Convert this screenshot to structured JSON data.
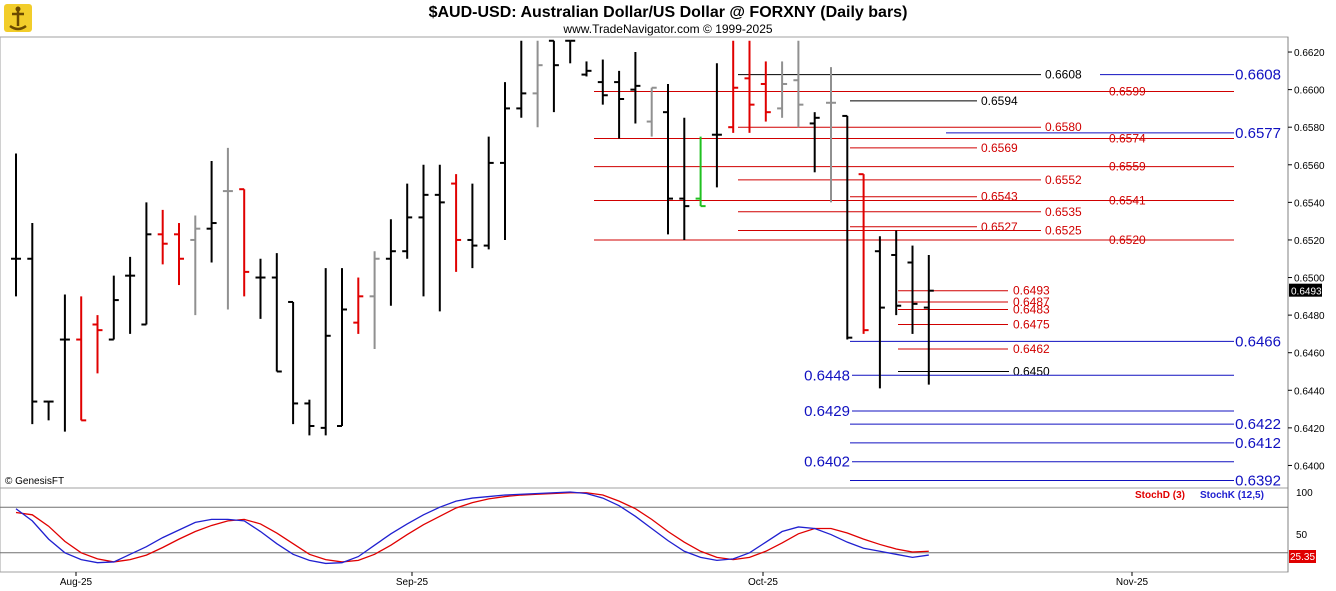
{
  "chart_data": {
    "type": "bar",
    "title": "$AUD-USD:  Australian Dollar/US Dollar @ FORXNY  (Daily bars)",
    "subtitle": "www.TradeNavigator.com © 1999-2025",
    "watermark": "© GenesisFT",
    "colors": {
      "up_bar": "#000000",
      "down_bar": "#e00000",
      "neutral_bar": "#909090",
      "support_line": "#1010c0",
      "resistance_line": "#d00000",
      "stochD": "#e00000",
      "stochK": "#2020d0",
      "last_price_bg": "#000000",
      "last_stoch_bg": "#e00000"
    },
    "y_axis": {
      "ticks": [
        "0.6620",
        "0.6600",
        "0.6580",
        "0.6560",
        "0.6540",
        "0.6520",
        "0.6500",
        "0.6480",
        "0.6460",
        "0.6440",
        "0.6420",
        "0.6400"
      ],
      "range": [
        0.6388,
        0.6628
      ]
    },
    "x_axis": {
      "labels": [
        "Aug-25",
        "Sep-25",
        "Oct-25",
        "Nov-25"
      ]
    },
    "last_price": "0.6493",
    "bars": [
      {
        "o": 0.651,
        "h": 0.6566,
        "l": 0.649,
        "c": 0.651,
        "color": "black"
      },
      {
        "o": 0.651,
        "h": 0.6529,
        "l": 0.6422,
        "c": 0.6434,
        "color": "black"
      },
      {
        "o": 0.6434,
        "h": 0.6434,
        "l": 0.6424,
        "c": 0.6434,
        "color": "black"
      },
      {
        "o": 0.6467,
        "h": 0.6491,
        "l": 0.6418,
        "c": 0.6467,
        "color": "black"
      },
      {
        "o": 0.6467,
        "h": 0.649,
        "l": 0.6424,
        "c": 0.6424,
        "color": "red"
      },
      {
        "o": 0.6475,
        "h": 0.648,
        "l": 0.6449,
        "c": 0.6472,
        "color": "red"
      },
      {
        "o": 0.6467,
        "h": 0.6501,
        "l": 0.6467,
        "c": 0.6488,
        "color": "black"
      },
      {
        "o": 0.6501,
        "h": 0.6511,
        "l": 0.647,
        "c": 0.6501,
        "color": "black"
      },
      {
        "o": 0.6475,
        "h": 0.654,
        "l": 0.6475,
        "c": 0.6523,
        "color": "black"
      },
      {
        "o": 0.6523,
        "h": 0.6536,
        "l": 0.6507,
        "c": 0.6518,
        "color": "red"
      },
      {
        "o": 0.6523,
        "h": 0.6529,
        "l": 0.6496,
        "c": 0.651,
        "color": "red"
      },
      {
        "o": 0.652,
        "h": 0.6533,
        "l": 0.648,
        "c": 0.6526,
        "color": "gray"
      },
      {
        "o": 0.6526,
        "h": 0.6562,
        "l": 0.6508,
        "c": 0.6529,
        "color": "black"
      },
      {
        "o": 0.6546,
        "h": 0.6569,
        "l": 0.6483,
        "c": 0.6546,
        "color": "gray"
      },
      {
        "o": 0.6547,
        "h": 0.6547,
        "l": 0.649,
        "c": 0.6503,
        "color": "red"
      },
      {
        "o": 0.65,
        "h": 0.651,
        "l": 0.6478,
        "c": 0.65,
        "color": "black"
      },
      {
        "o": 0.65,
        "h": 0.6513,
        "l": 0.645,
        "c": 0.645,
        "color": "black"
      },
      {
        "o": 0.6487,
        "h": 0.6487,
        "l": 0.6422,
        "c": 0.6433,
        "color": "black"
      },
      {
        "o": 0.6433,
        "h": 0.6435,
        "l": 0.6416,
        "c": 0.6421,
        "color": "black"
      },
      {
        "o": 0.642,
        "h": 0.6505,
        "l": 0.6416,
        "c": 0.6469,
        "color": "black"
      },
      {
        "o": 0.6421,
        "h": 0.6505,
        "l": 0.6421,
        "c": 0.6483,
        "color": "black"
      },
      {
        "o": 0.6476,
        "h": 0.65,
        "l": 0.647,
        "c": 0.649,
        "color": "red"
      },
      {
        "o": 0.649,
        "h": 0.6514,
        "l": 0.6462,
        "c": 0.651,
        "color": "gray"
      },
      {
        "o": 0.651,
        "h": 0.6531,
        "l": 0.6485,
        "c": 0.6514,
        "color": "black"
      },
      {
        "o": 0.6514,
        "h": 0.655,
        "l": 0.651,
        "c": 0.6532,
        "color": "black"
      },
      {
        "o": 0.6532,
        "h": 0.656,
        "l": 0.649,
        "c": 0.6544,
        "color": "black"
      },
      {
        "o": 0.6544,
        "h": 0.656,
        "l": 0.6482,
        "c": 0.654,
        "color": "black"
      },
      {
        "o": 0.655,
        "h": 0.6555,
        "l": 0.6503,
        "c": 0.652,
        "color": "red"
      },
      {
        "o": 0.652,
        "h": 0.655,
        "l": 0.6505,
        "c": 0.6517,
        "color": "black"
      },
      {
        "o": 0.6517,
        "h": 0.6575,
        "l": 0.6515,
        "c": 0.6561,
        "color": "black"
      },
      {
        "o": 0.6561,
        "h": 0.6604,
        "l": 0.652,
        "c": 0.659,
        "color": "black"
      },
      {
        "o": 0.659,
        "h": 0.6626,
        "l": 0.6585,
        "c": 0.6598,
        "color": "black"
      },
      {
        "o": 0.6598,
        "h": 0.6626,
        "l": 0.658,
        "c": 0.6613,
        "color": "gray"
      },
      {
        "o": 0.6626,
        "h": 0.6626,
        "l": 0.6588,
        "c": 0.6613,
        "color": "black"
      },
      {
        "o": 0.6626,
        "h": 0.6626,
        "l": 0.6614,
        "c": 0.6626,
        "color": "black"
      },
      {
        "o": 0.6608,
        "h": 0.6615,
        "l": 0.6607,
        "c": 0.661,
        "color": "black"
      },
      {
        "o": 0.6604,
        "h": 0.6616,
        "l": 0.6592,
        "c": 0.6597,
        "color": "black"
      },
      {
        "o": 0.6604,
        "h": 0.661,
        "l": 0.6574,
        "c": 0.6595,
        "color": "black"
      },
      {
        "o": 0.66,
        "h": 0.662,
        "l": 0.6582,
        "c": 0.6602,
        "color": "black"
      },
      {
        "o": 0.6583,
        "h": 0.6601,
        "l": 0.6575,
        "c": 0.6601,
        "color": "gray"
      },
      {
        "o": 0.6588,
        "h": 0.6603,
        "l": 0.6523,
        "c": 0.6542,
        "color": "black"
      },
      {
        "o": 0.6542,
        "h": 0.6585,
        "l": 0.652,
        "c": 0.6538,
        "color": "black"
      },
      {
        "o": 0.6542,
        "h": 0.6575,
        "l": 0.6538,
        "c": 0.6538,
        "color": "green"
      },
      {
        "o": 0.6576,
        "h": 0.6614,
        "l": 0.6548,
        "c": 0.6576,
        "color": "black"
      },
      {
        "o": 0.658,
        "h": 0.6626,
        "l": 0.6577,
        "c": 0.6601,
        "color": "red"
      },
      {
        "o": 0.6606,
        "h": 0.6626,
        "l": 0.6577,
        "c": 0.6592,
        "color": "red"
      },
      {
        "o": 0.6603,
        "h": 0.6615,
        "l": 0.6583,
        "c": 0.6588,
        "color": "red"
      },
      {
        "o": 0.659,
        "h": 0.6615,
        "l": 0.6585,
        "c": 0.6603,
        "color": "gray"
      },
      {
        "o": 0.6605,
        "h": 0.6626,
        "l": 0.658,
        "c": 0.6592,
        "color": "gray"
      },
      {
        "o": 0.6582,
        "h": 0.6588,
        "l": 0.6556,
        "c": 0.6585,
        "color": "black"
      },
      {
        "o": 0.6593,
        "h": 0.6612,
        "l": 0.654,
        "c": 0.6593,
        "color": "gray"
      },
      {
        "o": 0.6586,
        "h": 0.6586,
        "l": 0.6467,
        "c": 0.6468,
        "color": "black"
      },
      {
        "o": 0.6555,
        "h": 0.6555,
        "l": 0.647,
        "c": 0.6472,
        "color": "red"
      },
      {
        "o": 0.6514,
        "h": 0.6522,
        "l": 0.6441,
        "c": 0.6484,
        "color": "black"
      },
      {
        "o": 0.6512,
        "h": 0.6525,
        "l": 0.648,
        "c": 0.6485,
        "color": "black"
      },
      {
        "o": 0.6508,
        "h": 0.6517,
        "l": 0.647,
        "c": 0.6486,
        "color": "black"
      },
      {
        "o": 0.6484,
        "h": 0.6512,
        "l": 0.6443,
        "c": 0.6493,
        "color": "black"
      }
    ],
    "levels": {
      "red_long": [
        "0.6599",
        "0.6574",
        "0.6559",
        "0.6541",
        "0.6520"
      ],
      "red_mid": [
        "0.6580",
        "0.6569",
        "0.6552",
        "0.6543",
        "0.6535",
        "0.6527",
        "0.6525"
      ],
      "red_short": [
        "0.6493",
        "0.6487",
        "0.6483",
        "0.6475",
        "0.6462"
      ],
      "black": [
        "0.6608",
        "0.6594",
        "0.6450"
      ],
      "blue_right": [
        "0.6608",
        "0.6577",
        "0.6466",
        "0.6422",
        "0.6412",
        "0.6392"
      ],
      "blue_left": [
        "0.6448",
        "0.6429",
        "0.6402"
      ]
    },
    "indicator": {
      "legend_d": "StochD (3)",
      "legend_k": "StochK (12,5)",
      "ticks": [
        "100",
        "50"
      ],
      "last_value": "25.35",
      "stochK": [
        78,
        62,
        38,
        20,
        11,
        7,
        8,
        18,
        28,
        40,
        50,
        60,
        64,
        64,
        62,
        48,
        32,
        18,
        10,
        6,
        7,
        15,
        30,
        45,
        58,
        70,
        80,
        88,
        92,
        94,
        96,
        97,
        98,
        99,
        100,
        98,
        92,
        82,
        68,
        52,
        36,
        22,
        14,
        10,
        12,
        20,
        34,
        48,
        54,
        52,
        44,
        34,
        26,
        22,
        18,
        14,
        17
      ],
      "stochD": [
        73,
        70,
        55,
        35,
        20,
        12,
        8,
        11,
        17,
        27,
        38,
        48,
        56,
        62,
        64,
        58,
        46,
        32,
        18,
        11,
        8,
        10,
        18,
        30,
        44,
        57,
        68,
        79,
        86,
        91,
        94,
        96,
        97,
        98,
        99,
        99,
        96,
        88,
        78,
        64,
        48,
        34,
        22,
        14,
        11,
        14,
        22,
        33,
        45,
        52,
        52,
        46,
        38,
        31,
        25,
        21,
        22
      ]
    }
  }
}
